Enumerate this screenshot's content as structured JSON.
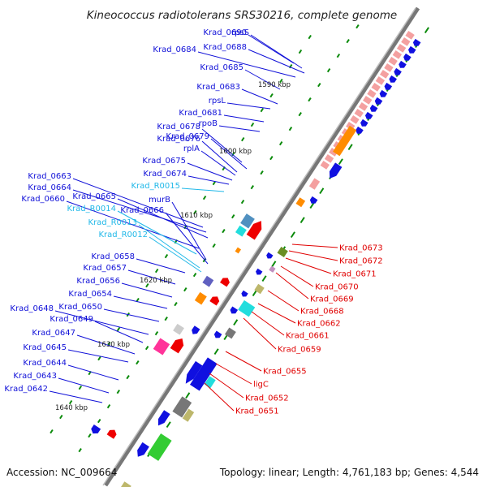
{
  "title": "Kineococcus radiotolerans SRS30216, complete genome",
  "footer": {
    "accession": "Accession: NC_009664",
    "topology": "Topology: linear; Length: 4,761,183 bp; Genes: 4,544"
  },
  "colors": {
    "gene_label": "#1010d8",
    "rna_label": "#20b8e8",
    "minus_label": "#e00000",
    "backbone": "#8a8a8a",
    "gene_fill": "#1010e0",
    "minus_fill": "#ee0000",
    "tick": "#0a8a0a",
    "rrna": "#f4a0a0",
    "highlight": "#ff8c00"
  },
  "kbp_marks": [
    "1590 kbp",
    "1600 kbp",
    "1610 kbp",
    "1620 kbp",
    "1630 kbp",
    "1640 kbp"
  ],
  "plus_labels": [
    "Krad_0690",
    "rpsS",
    "Krad_0688",
    "Krad_0684",
    "Krad_0685",
    "Krad_0683",
    "rpsL",
    "Krad_0681",
    "rpoB",
    "Krad_0678",
    "Krad_0679",
    "Krad_0676",
    "rplA",
    "Krad_0675",
    "Krad_0674",
    "Krad_R0015",
    "Krad_0663",
    "Krad_0664",
    "Krad_0665",
    "Krad_0660",
    "Krad_R0014",
    "murB",
    "Krad_0666",
    "Krad_R0013",
    "Krad_R0012",
    "Krad_0658",
    "Krad_0657",
    "Krad_0656",
    "Krad_0654",
    "Krad_0650",
    "Krad_0648",
    "Krad_0649",
    "Krad_0647",
    "Krad_0645",
    "Krad_0644",
    "Krad_0643",
    "Krad_0642"
  ],
  "minus_labels": [
    "Krad_0673",
    "Krad_0672",
    "Krad_0671",
    "Krad_0670",
    "Krad_0669",
    "Krad_0668",
    "Krad_0662",
    "Krad_0661",
    "Krad_0659",
    "Krad_0655",
    "ligC",
    "Krad_0652",
    "Krad_0651"
  ]
}
